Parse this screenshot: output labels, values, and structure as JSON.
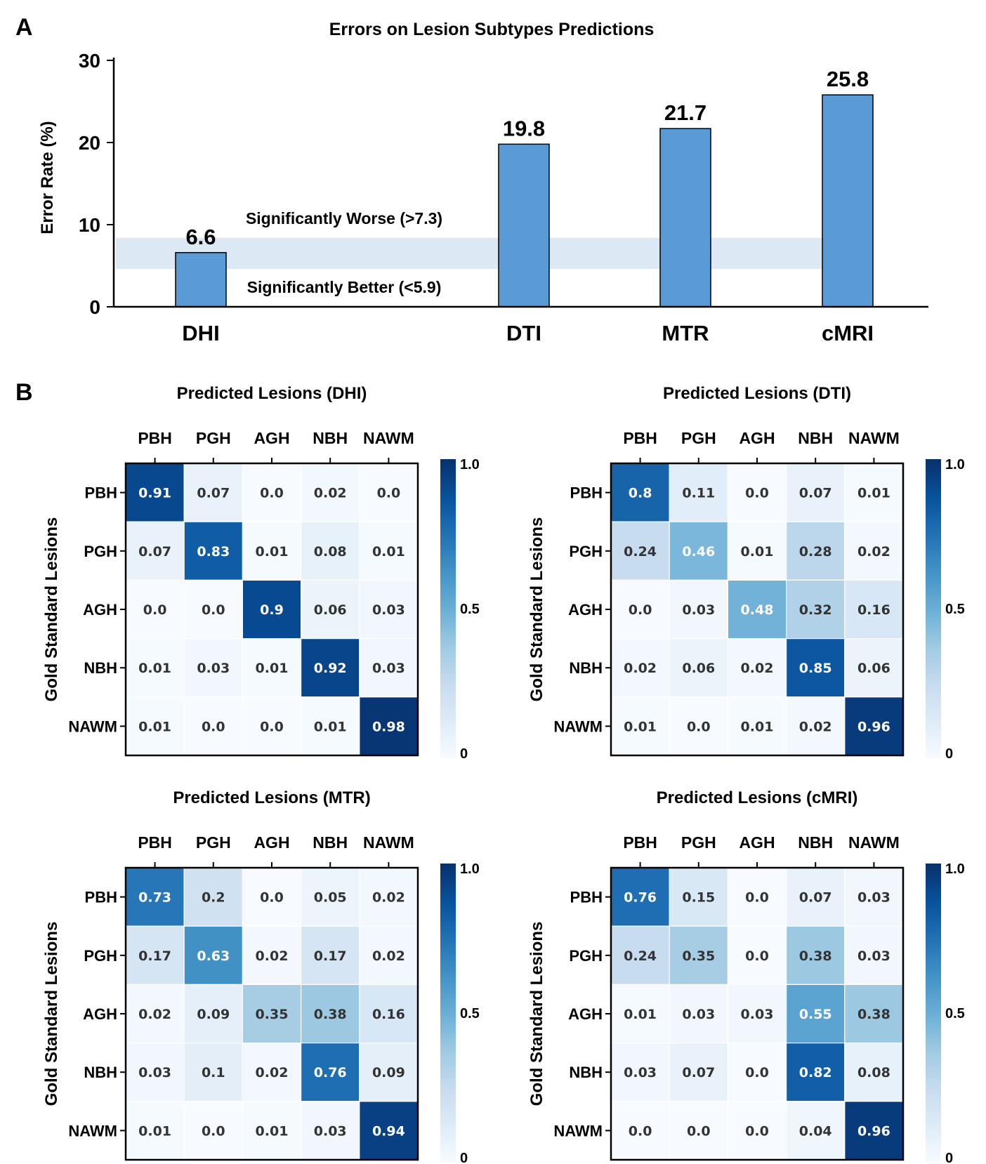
{
  "chart_data": [
    {
      "type": "bar",
      "panel": "A",
      "title": "Errors on Lesion Subtypes Predictions",
      "ylabel": "Error Rate (%)",
      "xlabel": "",
      "categories": [
        "DHI",
        "DTI",
        "MTR",
        "cMRI"
      ],
      "values": [
        6.6,
        19.8,
        21.7,
        25.8
      ],
      "value_labels": [
        "6.6",
        "19.8",
        "21.7",
        "25.8"
      ],
      "ylim": [
        0,
        30
      ],
      "yticks": [
        "0",
        "10",
        "20",
        "30"
      ],
      "band": {
        "low": 4.6,
        "high": 8.4,
        "color": "#dde8f5"
      },
      "annotations": {
        "upper": "Significantly Worse (>7.3)",
        "lower": "Significantly Better (<5.9)"
      },
      "bar_color": "#5b9bd5",
      "grid": false
    },
    {
      "type": "heatmap",
      "panel": "B",
      "title": "Predicted Lesions (DHI)",
      "ylabel": "Gold Standard Lesions",
      "columns": [
        "PBH",
        "PGH",
        "AGH",
        "NBH",
        "NAWM"
      ],
      "rows": [
        "PBH",
        "PGH",
        "AGH",
        "NBH",
        "NAWM"
      ],
      "values": [
        [
          0.91,
          0.07,
          0.0,
          0.02,
          0.0
        ],
        [
          0.07,
          0.83,
          0.01,
          0.08,
          0.01
        ],
        [
          0.0,
          0.0,
          0.9,
          0.06,
          0.03
        ],
        [
          0.01,
          0.03,
          0.01,
          0.92,
          0.03
        ],
        [
          0.01,
          0.0,
          0.0,
          0.01,
          0.98
        ]
      ],
      "cell_labels": [
        [
          "0.91",
          "0.07",
          "0.0",
          "0.02",
          "0.0"
        ],
        [
          "0.07",
          "0.83",
          "0.01",
          "0.08",
          "0.01"
        ],
        [
          "0.0",
          "0.0",
          "0.9",
          "0.06",
          "0.03"
        ],
        [
          "0.01",
          "0.03",
          "0.01",
          "0.92",
          "0.03"
        ],
        [
          "0.01",
          "0.0",
          "0.0",
          "0.01",
          "0.98"
        ]
      ],
      "colorbar": {
        "min": 0,
        "max": 1,
        "ticks": [
          "0",
          "0.5",
          "1.0"
        ],
        "colormap": "Blues"
      }
    },
    {
      "type": "heatmap",
      "title": "Predicted Lesions (DTI)",
      "ylabel": "Gold Standard Lesions",
      "columns": [
        "PBH",
        "PGH",
        "AGH",
        "NBH",
        "NAWM"
      ],
      "rows": [
        "PBH",
        "PGH",
        "AGH",
        "NBH",
        "NAWM"
      ],
      "values": [
        [
          0.8,
          0.11,
          0.0,
          0.07,
          0.01
        ],
        [
          0.24,
          0.46,
          0.01,
          0.28,
          0.02
        ],
        [
          0.0,
          0.03,
          0.48,
          0.32,
          0.16
        ],
        [
          0.02,
          0.06,
          0.02,
          0.85,
          0.06
        ],
        [
          0.01,
          0.0,
          0.01,
          0.02,
          0.96
        ]
      ],
      "cell_labels": [
        [
          "0.8",
          "0.11",
          "0.0",
          "0.07",
          "0.01"
        ],
        [
          "0.24",
          "0.46",
          "0.01",
          "0.28",
          "0.02"
        ],
        [
          "0.0",
          "0.03",
          "0.48",
          "0.32",
          "0.16"
        ],
        [
          "0.02",
          "0.06",
          "0.02",
          "0.85",
          "0.06"
        ],
        [
          "0.01",
          "0.0",
          "0.01",
          "0.02",
          "0.96"
        ]
      ],
      "colorbar": {
        "min": 0,
        "max": 1,
        "ticks": [
          "0",
          "0.5",
          "1.0"
        ],
        "colormap": "Blues"
      }
    },
    {
      "type": "heatmap",
      "title": "Predicted Lesions (MTR)",
      "ylabel": "Gold Standard Lesions",
      "columns": [
        "PBH",
        "PGH",
        "AGH",
        "NBH",
        "NAWM"
      ],
      "rows": [
        "PBH",
        "PGH",
        "AGH",
        "NBH",
        "NAWM"
      ],
      "values": [
        [
          0.73,
          0.2,
          0.0,
          0.05,
          0.02
        ],
        [
          0.17,
          0.63,
          0.02,
          0.17,
          0.02
        ],
        [
          0.02,
          0.09,
          0.35,
          0.38,
          0.16
        ],
        [
          0.03,
          0.1,
          0.02,
          0.76,
          0.09
        ],
        [
          0.01,
          0.0,
          0.01,
          0.03,
          0.94
        ]
      ],
      "cell_labels": [
        [
          "0.73",
          "0.2",
          "0.0",
          "0.05",
          "0.02"
        ],
        [
          "0.17",
          "0.63",
          "0.02",
          "0.17",
          "0.02"
        ],
        [
          "0.02",
          "0.09",
          "0.35",
          "0.38",
          "0.16"
        ],
        [
          "0.03",
          "0.1",
          "0.02",
          "0.76",
          "0.09"
        ],
        [
          "0.01",
          "0.0",
          "0.01",
          "0.03",
          "0.94"
        ]
      ],
      "colorbar": {
        "min": 0,
        "max": 1,
        "ticks": [
          "0",
          "0.5",
          "1.0"
        ],
        "colormap": "Blues"
      }
    },
    {
      "type": "heatmap",
      "title": "Predicted Lesions (cMRI)",
      "ylabel": "Gold Standard Lesions",
      "columns": [
        "PBH",
        "PGH",
        "AGH",
        "NBH",
        "NAWM"
      ],
      "rows": [
        "PBH",
        "PGH",
        "AGH",
        "NBH",
        "NAWM"
      ],
      "values": [
        [
          0.76,
          0.15,
          0.0,
          0.07,
          0.03
        ],
        [
          0.24,
          0.35,
          0.0,
          0.38,
          0.03
        ],
        [
          0.01,
          0.03,
          0.03,
          0.55,
          0.38
        ],
        [
          0.03,
          0.07,
          0.0,
          0.82,
          0.08
        ],
        [
          0.0,
          0.0,
          0.0,
          0.04,
          0.96
        ]
      ],
      "cell_labels": [
        [
          "0.76",
          "0.15",
          "0.0",
          "0.07",
          "0.03"
        ],
        [
          "0.24",
          "0.35",
          "0.0",
          "0.38",
          "0.03"
        ],
        [
          "0.01",
          "0.03",
          "0.03",
          "0.55",
          "0.38"
        ],
        [
          "0.03",
          "0.07",
          "0.0",
          "0.82",
          "0.08"
        ],
        [
          "0.0",
          "0.0",
          "0.0",
          "0.04",
          "0.96"
        ]
      ],
      "colorbar": {
        "min": 0,
        "max": 1,
        "ticks": [
          "0",
          "0.5",
          "1.0"
        ],
        "colormap": "Blues"
      }
    }
  ]
}
